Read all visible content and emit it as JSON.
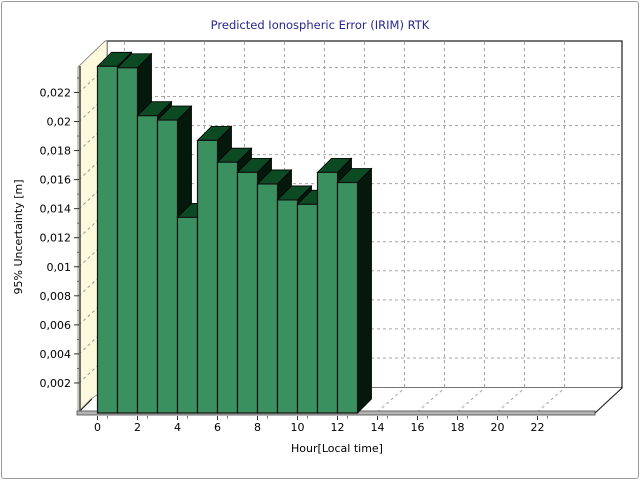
{
  "window": {
    "background": "#ffffff",
    "border_color": "#9a9a9a"
  },
  "chart_data": {
    "type": "bar",
    "projection": "3d",
    "title": "Predicted Ionospheric Error (IRIM) RTK",
    "xlabel": "Hour[Local time]",
    "ylabel": "95% Uncertainty [m]",
    "decimal_separator": ",",
    "grid": true,
    "legend": false,
    "xlim": [
      0,
      24
    ],
    "ylim": [
      0,
      0.024
    ],
    "x": [
      0,
      1,
      2,
      3,
      4,
      5,
      6,
      7,
      8,
      9,
      10,
      11,
      12
    ],
    "values": [
      0.0238,
      0.0237,
      0.0204,
      0.0201,
      0.0134,
      0.0187,
      0.0172,
      0.0165,
      0.0157,
      0.0146,
      0.0143,
      0.0165,
      0.0158
    ],
    "x_ticks": [
      0,
      2,
      4,
      6,
      8,
      10,
      12,
      14,
      16,
      18,
      20,
      22
    ],
    "x_tick_labels": [
      "0",
      "2",
      "4",
      "6",
      "8",
      "10",
      "12",
      "14",
      "16",
      "18",
      "20",
      "22"
    ],
    "y_ticks": [
      0.002,
      0.004,
      0.006,
      0.008,
      0.01,
      0.012,
      0.014,
      0.016,
      0.018,
      0.02,
      0.022
    ],
    "y_tick_labels": [
      "0,002",
      "0,004",
      "0,006",
      "0,008",
      "0,01",
      "0,012",
      "0,014",
      "0,016",
      "0,018",
      "0,02",
      "0,022"
    ],
    "colors": {
      "title": "#26268e",
      "tick_text": "#000000",
      "bar_front": "#3a915f",
      "bar_top": "#0c4a24",
      "bar_side": "#05180c",
      "bar_outline": "#121212",
      "wall_left": "#fcf9dc",
      "wall_back": "#ffffff",
      "floor": "#ffffff",
      "gridline": "#a6a6a6",
      "frame": "#1a1a1a",
      "axis_band": "#b3b3b3",
      "axis_band_edge": "#5a5a5a"
    }
  }
}
